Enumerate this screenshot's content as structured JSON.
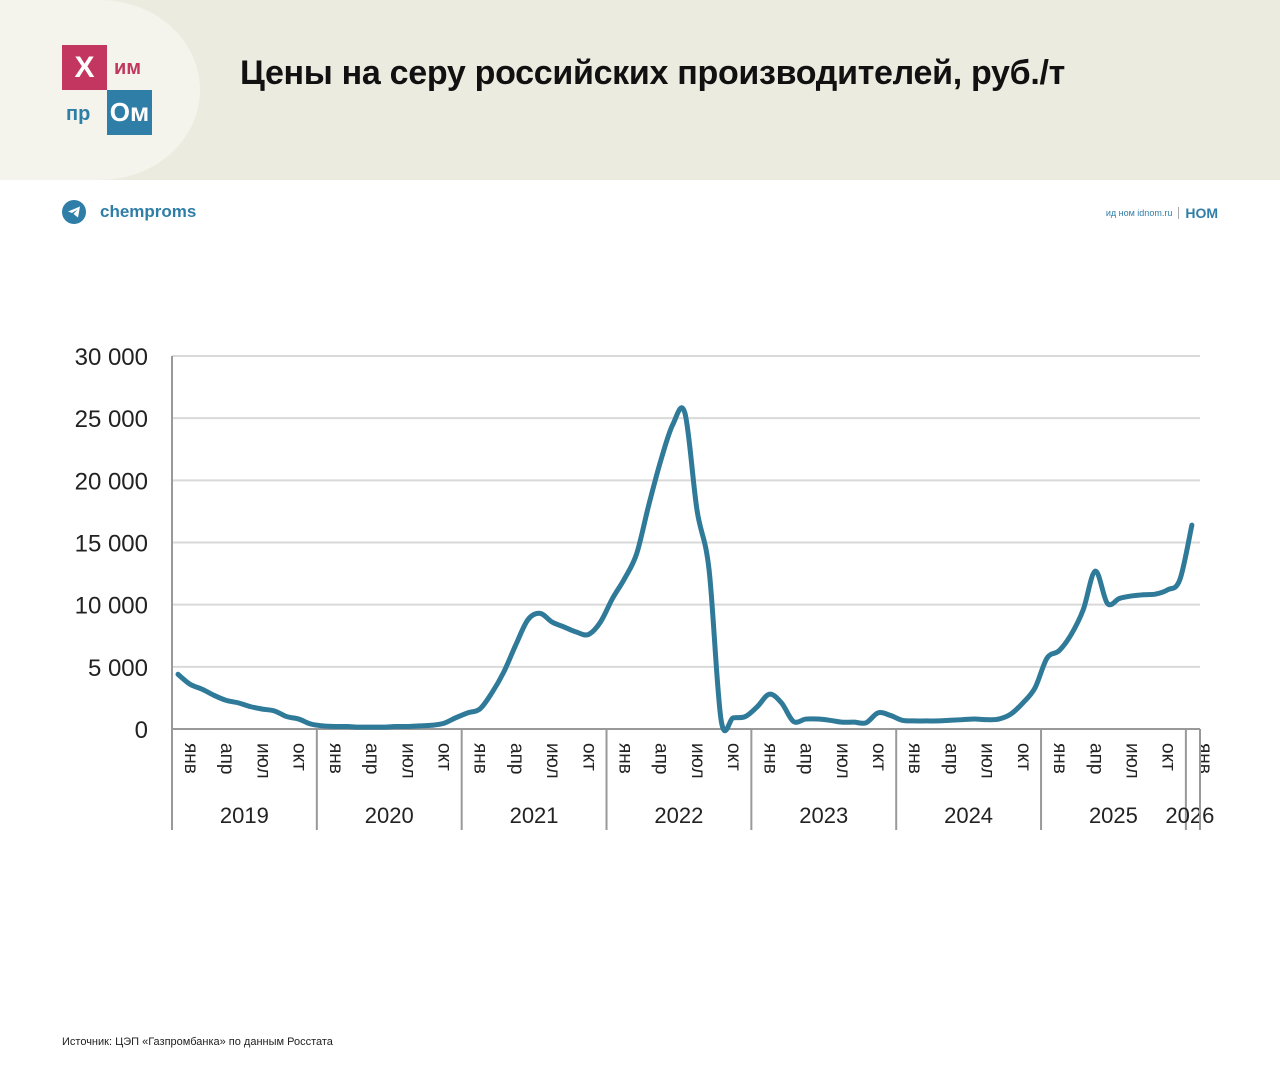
{
  "header": {
    "title": "Цены на серу российских производителей, руб./т",
    "logo": {
      "top_left": "Х",
      "top_right": "им",
      "bottom_left": "пр",
      "bottom_right": "Ом"
    }
  },
  "telegram": {
    "icon": "telegram-icon",
    "label": "chemproms"
  },
  "publisher": {
    "small_text": "ид ном idnom.ru",
    "logo": "НОМ"
  },
  "source": "Источник: ЦЭП «Газпромбанка» по данным Росстата",
  "colors": {
    "line": "#2f7a99",
    "accent_red": "#c2365f",
    "accent_blue": "#2f7ea7"
  },
  "chart_data": {
    "type": "line",
    "title": "Цены на серу российских производителей, руб./т",
    "ylim": [
      0,
      30000
    ],
    "yticks": [
      0,
      5000,
      10000,
      15000,
      20000,
      25000,
      30000
    ],
    "ytick_labels": [
      "0",
      "5 000",
      "10 000",
      "15 000",
      "20 000",
      "25 000",
      "30 000"
    ],
    "grid": true,
    "month_labels": [
      "янв",
      "апр",
      "июл",
      "окт"
    ],
    "years": [
      "2019",
      "2020",
      "2021",
      "2022",
      "2023",
      "2024",
      "2025",
      "2026"
    ],
    "start": "2019-01",
    "series": [
      {
        "name": "Цена, руб./т",
        "values": [
          4400,
          3600,
          3200,
          2700,
          2300,
          2100,
          1800,
          1600,
          1450,
          1000,
          800,
          400,
          250,
          200,
          200,
          150,
          150,
          150,
          200,
          200,
          250,
          300,
          450,
          900,
          1300,
          1600,
          2900,
          4600,
          6800,
          8800,
          9300,
          8600,
          8200,
          7800,
          7600,
          8600,
          10500,
          12100,
          14100,
          18000,
          21600,
          24500,
          25400,
          17600,
          12800,
          700,
          900,
          1000,
          1800,
          2800,
          2100,
          600,
          800,
          800,
          700,
          550,
          550,
          500,
          1300,
          1100,
          700,
          650,
          650,
          650,
          700,
          750,
          800,
          750,
          800,
          1200,
          2100,
          3300,
          5700,
          6300,
          7600,
          9600,
          12700,
          10100,
          10500,
          10700,
          10800,
          10850,
          11200,
          12000,
          16400
        ]
      }
    ]
  }
}
